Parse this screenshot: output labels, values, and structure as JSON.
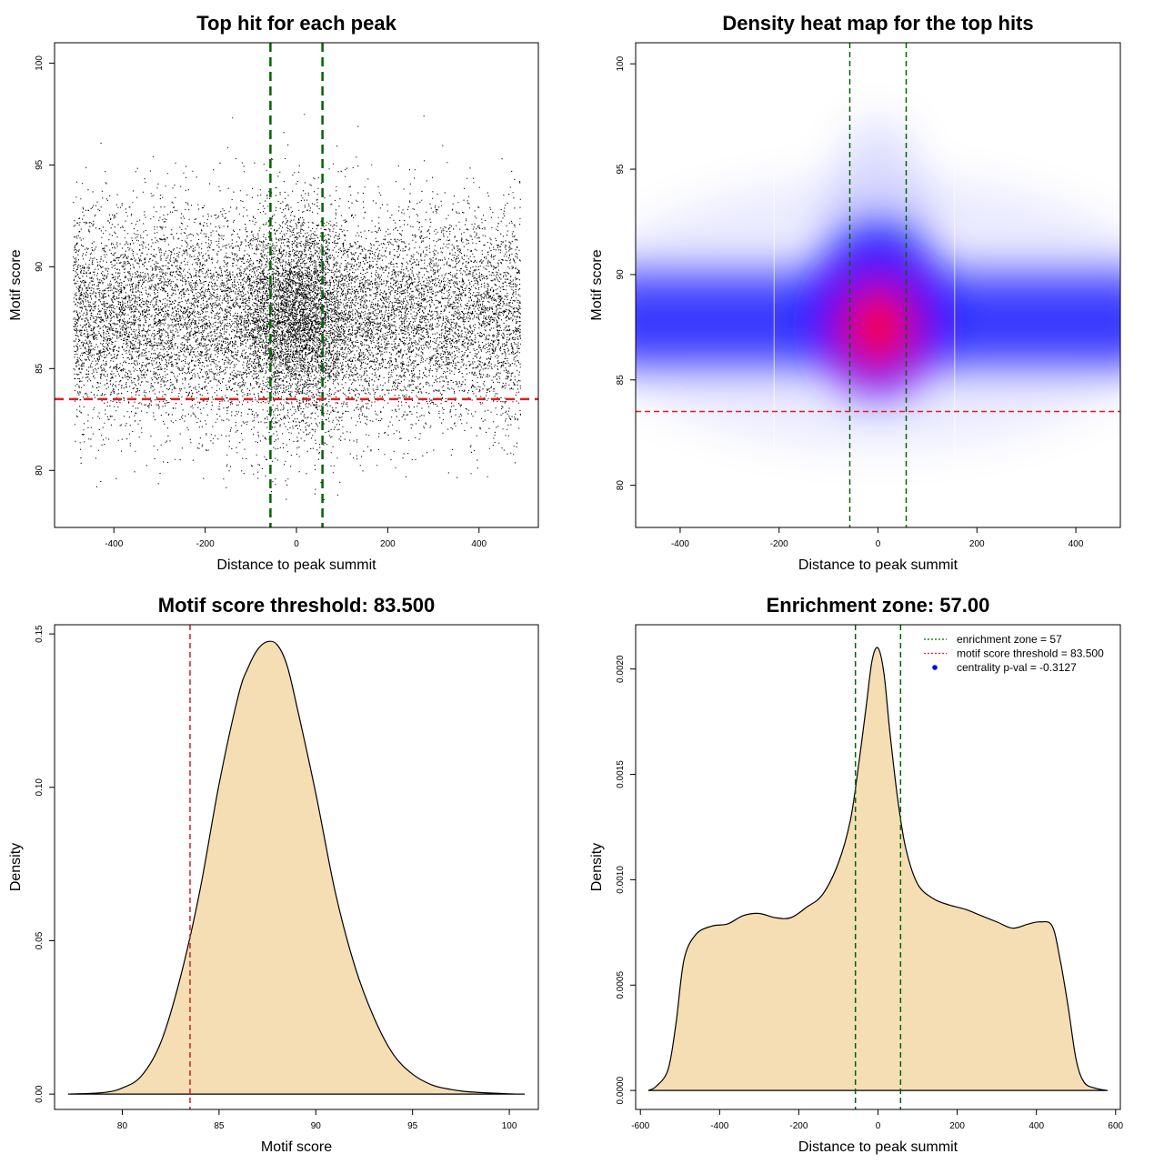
{
  "chart_data": [
    {
      "type": "scatter",
      "title": "Top hit for each peak",
      "xlabel": "Distance to peak summit",
      "ylabel": "Motif score",
      "xlim": [
        -530,
        530
      ],
      "ylim": [
        77.2,
        101
      ],
      "xticks": [
        -400,
        -200,
        0,
        200,
        400
      ],
      "yticks": [
        80,
        85,
        90,
        95,
        100
      ],
      "grid": false,
      "points": {
        "count": 16000,
        "x_range": [
          -490,
          490
        ],
        "y_center": 87.5,
        "y_spread": 2.6,
        "central_zone_extra_density": true,
        "note_points": "individual points are dense black dots; generated from summary distribution"
      },
      "vlines": [
        {
          "x": -57,
          "color": "#006400",
          "style": "dashed"
        },
        {
          "x": 57,
          "color": "#006400",
          "style": "dashed"
        }
      ],
      "hlines": [
        {
          "y": 83.5,
          "color": "#e02020",
          "style": "dashed"
        }
      ]
    },
    {
      "type": "heatmap",
      "title": "Density heat map for the top hits",
      "xlabel": "Distance to peak summit",
      "ylabel": "Motif score",
      "xlim": [
        -490,
        490
      ],
      "ylim": [
        78,
        101
      ],
      "xticks": [
        -400,
        -200,
        0,
        200,
        400
      ],
      "yticks": [
        80,
        85,
        90,
        95,
        100
      ],
      "colors": {
        "low": "#ffffff",
        "mid": "#0000ff",
        "high": "#ff0000"
      },
      "peak": {
        "x": 0,
        "y": 87.5
      },
      "vlines": [
        {
          "x": -57,
          "color": "#006400",
          "style": "dashed"
        },
        {
          "x": 57,
          "color": "#006400",
          "style": "dashed"
        }
      ],
      "hlines": [
        {
          "y": 83.5,
          "color": "#e02020",
          "style": "dashed"
        }
      ]
    },
    {
      "type": "area",
      "title": "Motif score threshold: 83.500",
      "xlabel": "Motif score",
      "ylabel": "Density",
      "xlim": [
        76.5,
        101.5
      ],
      "ylim": [
        -0.005,
        0.153
      ],
      "xticks": [
        80,
        85,
        90,
        95,
        100
      ],
      "yticks": [
        0.0,
        0.05,
        0.1,
        0.15
      ],
      "ytick_labels": [
        "0.00",
        "0.05",
        "0.10",
        "0.15"
      ],
      "fill": "#f5deb3",
      "x": [
        77.2,
        79,
        80,
        81,
        82,
        83,
        84,
        85,
        86,
        86.5,
        87,
        87.5,
        88,
        88.5,
        89,
        90,
        91,
        92,
        93,
        94,
        95,
        96,
        97,
        98,
        100,
        100.8
      ],
      "y": [
        0.0,
        0.0005,
        0.002,
        0.006,
        0.017,
        0.038,
        0.066,
        0.101,
        0.13,
        0.139,
        0.145,
        0.1475,
        0.1465,
        0.14,
        0.127,
        0.098,
        0.066,
        0.042,
        0.025,
        0.013,
        0.0065,
        0.003,
        0.0015,
        0.0007,
        0.0001,
        0.0
      ],
      "vlines": [
        {
          "x": 83.5,
          "color": "#d02020",
          "style": "dashed"
        }
      ]
    },
    {
      "type": "area",
      "title": "Enrichment zone: 57.00",
      "xlabel": "Distance to peak summit",
      "ylabel": "Density",
      "xlim": [
        -612,
        612
      ],
      "ylim": [
        -9e-05,
        0.00221
      ],
      "xticks": [
        -600,
        -400,
        -200,
        0,
        200,
        400,
        600
      ],
      "yticks": [
        0.0,
        0.0005,
        0.001,
        0.0015,
        0.002
      ],
      "ytick_labels": [
        "0.0000",
        "0.0005",
        "0.0010",
        "0.0015",
        "0.0020"
      ],
      "fill": "#f5deb3",
      "x": [
        -580,
        -560,
        -530,
        -510,
        -490,
        -460,
        -420,
        -380,
        -340,
        -300,
        -260,
        -220,
        -180,
        -140,
        -100,
        -70,
        -50,
        -30,
        -15,
        0,
        15,
        30,
        50,
        70,
        100,
        140,
        180,
        220,
        260,
        300,
        340,
        380,
        410,
        440,
        460,
        480,
        500,
        520,
        550,
        580
      ],
      "y": [
        0.0,
        2e-05,
        0.0001,
        0.00032,
        0.00062,
        0.00074,
        0.00078,
        0.00079,
        0.00083,
        0.00084,
        0.00082,
        0.00082,
        0.00087,
        0.00093,
        0.00108,
        0.00128,
        0.00153,
        0.00182,
        0.00204,
        0.0021,
        0.00198,
        0.0017,
        0.00138,
        0.00115,
        0.00098,
        0.00091,
        0.00088,
        0.00086,
        0.00083,
        0.0008,
        0.00077,
        0.00079,
        0.0008,
        0.00078,
        0.00062,
        0.0004,
        0.00015,
        4e-05,
        1e-05,
        0.0
      ],
      "vlines": [
        {
          "x": -57,
          "color": "#006400",
          "style": "dashed"
        },
        {
          "x": 57,
          "color": "#006400",
          "style": "dashed"
        }
      ],
      "legend": {
        "position": "top-right",
        "entries": [
          {
            "label": "enrichment zone = 57",
            "color": "#006400",
            "kind": "dotted-line"
          },
          {
            "label": "motif score threshold = 83.500",
            "color": "#e02020",
            "kind": "dotted-line"
          },
          {
            "label": "centrality p-val = -0.3127",
            "color": "#0000ff",
            "kind": "dot"
          }
        ]
      }
    }
  ]
}
